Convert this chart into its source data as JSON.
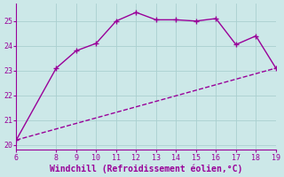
{
  "title": "",
  "xlabel": "Windchill (Refroidissement éolien,°C)",
  "line1_x": [
    6,
    8,
    9,
    10,
    11,
    12,
    13,
    14,
    15,
    16,
    17,
    18,
    19
  ],
  "line1_y": [
    20.2,
    23.1,
    23.8,
    24.1,
    25.0,
    25.35,
    25.05,
    25.05,
    25.0,
    25.1,
    24.05,
    24.4,
    23.1
  ],
  "line2_x": [
    6,
    19
  ],
  "line2_y": [
    20.2,
    23.1
  ],
  "line_color": "#990099",
  "bg_color": "#cce8e8",
  "grid_color": "#aad0d0",
  "text_color": "#990099",
  "xlim": [
    6,
    19
  ],
  "ylim": [
    19.8,
    25.7
  ],
  "xticks": [
    6,
    8,
    9,
    10,
    11,
    12,
    13,
    14,
    15,
    16,
    17,
    18,
    19
  ],
  "yticks": [
    20,
    21,
    22,
    23,
    24,
    25
  ],
  "marker": "+",
  "markersize": 5,
  "markeredgewidth": 1.0,
  "linewidth": 1.0,
  "tick_fontsize": 6.0,
  "xlabel_fontsize": 7.0
}
